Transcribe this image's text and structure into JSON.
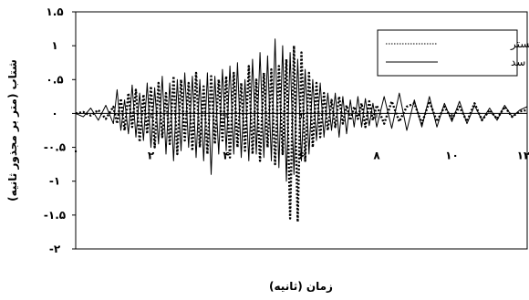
{
  "chart_data": {
    "type": "line",
    "title": "",
    "xlabel": "زمان (ثانیه)",
    "ylabel": "شتاب (متر بر مجذور ثانیه)",
    "xlim": [
      0,
      12
    ],
    "ylim": [
      -2,
      1.5
    ],
    "x_ticks": [
      {
        "value": 2,
        "label": "۲"
      },
      {
        "value": 4,
        "label": "۴"
      },
      {
        "value": 6,
        "label": "۶"
      },
      {
        "value": 8,
        "label": "۸"
      },
      {
        "value": 10,
        "label": "۱۰"
      },
      {
        "value": 12,
        "label": "۱۲"
      }
    ],
    "x_origin_label": "۰",
    "y_ticks": [
      {
        "value": 1.5,
        "label": "۱.۵"
      },
      {
        "value": 1,
        "label": "۱"
      },
      {
        "value": 0.5,
        "label": "۰.۵"
      },
      {
        "value": 0,
        "label": "۰"
      },
      {
        "value": -0.5,
        "label": "-۰.۵"
      },
      {
        "value": -1,
        "label": "-۱"
      },
      {
        "value": -1.5,
        "label": "-۱.۵"
      },
      {
        "value": -2,
        "label": "-۲"
      }
    ],
    "grid": false,
    "legend_position": "top-right",
    "series": [
      {
        "name": "سنگ بستر",
        "style": "dotted",
        "color": "#000000",
        "x": [
          0,
          0.2,
          0.4,
          0.6,
          0.8,
          1,
          1.1,
          1.2,
          1.3,
          1.4,
          1.5,
          1.6,
          1.7,
          1.8,
          1.9,
          2,
          2.1,
          2.2,
          2.3,
          2.4,
          2.5,
          2.6,
          2.7,
          2.8,
          2.9,
          3,
          3.1,
          3.2,
          3.3,
          3.4,
          3.5,
          3.6,
          3.7,
          3.8,
          3.9,
          4,
          4.1,
          4.2,
          4.3,
          4.4,
          4.5,
          4.6,
          4.7,
          4.8,
          4.9,
          5,
          5.1,
          5.2,
          5.3,
          5.4,
          5.5,
          5.6,
          5.7,
          5.8,
          5.9,
          6,
          6.1,
          6.2,
          6.3,
          6.4,
          6.5,
          6.6,
          6.7,
          6.8,
          6.9,
          7,
          7.1,
          7.2,
          7.3,
          7.4,
          7.5,
          7.6,
          7.7,
          7.8,
          7.9,
          8,
          8.2,
          8.4,
          8.6,
          8.8,
          9,
          9.2,
          9.4,
          9.6,
          9.8,
          10,
          10.2,
          10.4,
          10.6,
          10.8,
          11,
          11.2,
          11.4,
          11.6,
          11.8,
          12
        ],
        "y": [
          0,
          0.02,
          -0.03,
          0.05,
          -0.08,
          0.1,
          -0.15,
          0.22,
          -0.25,
          0.3,
          -0.2,
          0.35,
          -0.42,
          0.28,
          -0.3,
          0.4,
          -0.5,
          0.45,
          -0.35,
          0.3,
          -0.45,
          0.55,
          -0.6,
          0.5,
          -0.4,
          0.45,
          -0.55,
          0.6,
          -0.5,
          0.4,
          -0.6,
          0.55,
          -0.45,
          0.5,
          -0.4,
          0.55,
          -0.65,
          0.6,
          -0.5,
          0.45,
          -0.55,
          0.7,
          -0.6,
          0.5,
          -0.7,
          0.6,
          -0.5,
          0.65,
          -0.75,
          0.7,
          -0.6,
          0.8,
          -1.55,
          1.0,
          -1.6,
          0.9,
          -0.7,
          0.6,
          -0.5,
          0.45,
          -0.35,
          0.3,
          -0.25,
          0.2,
          -0.2,
          0.25,
          -0.15,
          0.12,
          -0.1,
          0.1,
          -0.08,
          0.15,
          -0.2,
          0.18,
          -0.1,
          0.12,
          -0.15,
          0.18,
          -0.12,
          0.1,
          0.15,
          -0.15,
          0.18,
          -0.12,
          0.1,
          -0.08,
          0.1,
          -0.12,
          0.15,
          -0.1,
          0.05,
          -0.08,
          0.1,
          -0.05,
          0.03,
          0.05
        ]
      },
      {
        "name": "تاج سد",
        "style": "solid",
        "color": "#000000",
        "x": [
          0,
          0.2,
          0.4,
          0.6,
          0.8,
          1,
          1.1,
          1.2,
          1.3,
          1.4,
          1.5,
          1.6,
          1.7,
          1.8,
          1.9,
          2,
          2.1,
          2.2,
          2.3,
          2.4,
          2.5,
          2.6,
          2.7,
          2.8,
          2.9,
          3,
          3.1,
          3.2,
          3.3,
          3.4,
          3.5,
          3.6,
          3.7,
          3.8,
          3.9,
          4,
          4.1,
          4.2,
          4.3,
          4.4,
          4.5,
          4.6,
          4.7,
          4.8,
          4.9,
          5,
          5.1,
          5.2,
          5.3,
          5.4,
          5.5,
          5.6,
          5.7,
          5.8,
          5.9,
          6,
          6.1,
          6.2,
          6.3,
          6.4,
          6.5,
          6.6,
          6.7,
          6.8,
          6.9,
          7,
          7.1,
          7.2,
          7.3,
          7.4,
          7.5,
          7.6,
          7.7,
          7.8,
          7.9,
          8,
          8.2,
          8.4,
          8.6,
          8.8,
          9,
          9.2,
          9.4,
          9.6,
          9.8,
          10,
          10.2,
          10.4,
          10.6,
          10.8,
          11,
          11.2,
          11.4,
          11.6,
          11.8,
          12
        ],
        "y": [
          0,
          -0.05,
          0.08,
          -0.1,
          0.12,
          -0.15,
          0.35,
          -0.25,
          0.2,
          -0.3,
          0.42,
          -0.35,
          0.3,
          -0.4,
          0.45,
          -0.5,
          0.38,
          -0.45,
          0.55,
          -0.6,
          0.45,
          -0.7,
          0.5,
          -0.55,
          0.6,
          -0.5,
          0.55,
          -0.65,
          0.5,
          -0.7,
          0.6,
          -0.9,
          0.55,
          -0.6,
          0.65,
          -0.55,
          0.7,
          -0.6,
          0.75,
          -0.65,
          0.5,
          -0.7,
          0.8,
          -0.6,
          0.9,
          -0.65,
          0.85,
          -0.7,
          1.1,
          -0.8,
          1.0,
          -1.0,
          0.9,
          -0.9,
          0.8,
          -0.7,
          0.65,
          -0.6,
          0.5,
          -0.4,
          0.45,
          -0.35,
          0.3,
          -0.25,
          0.3,
          -0.35,
          0.25,
          -0.3,
          0.2,
          -0.2,
          0.25,
          -0.2,
          0.22,
          -0.18,
          0.15,
          -0.2,
          0.25,
          -0.22,
          0.3,
          -0.25,
          0.2,
          -0.2,
          0.25,
          -0.2,
          0.15,
          -0.12,
          0.18,
          -0.15,
          0.12,
          -0.1,
          0.08,
          -0.1,
          0.12,
          -0.05,
          0.05,
          0.1
        ]
      }
    ]
  }
}
